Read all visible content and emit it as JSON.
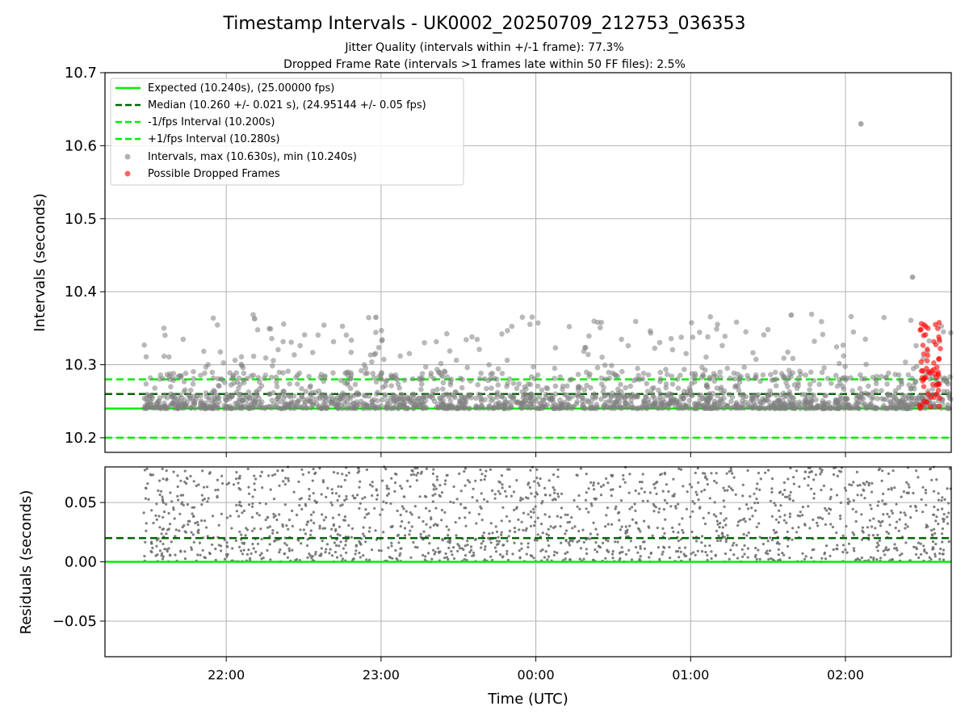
{
  "figure": {
    "title": "Timestamp Intervals - UK0002_20250709_212753_036353",
    "subtitle_line1": "Jitter Quality (intervals within +/-1 frame): 77.3%",
    "subtitle_line2": "Dropped Frame Rate (intervals >1 frames late within 50 FF files): 2.5%"
  },
  "colors": {
    "expected": "#00ee00",
    "median": "#006400",
    "fps_bounds": "#00ee00",
    "intervals": "#808080",
    "dropped": "#ff0000",
    "grid": "#b0b0b0"
  },
  "chart_data": [
    {
      "type": "scatter",
      "ylabel": "Intervals (seconds)",
      "ylim": [
        10.18,
        10.7
      ],
      "yticks": [
        10.2,
        10.3,
        10.4,
        10.5,
        10.6,
        10.7
      ],
      "ytick_labels": [
        "10.2",
        "10.3",
        "10.4",
        "10.5",
        "10.6",
        "10.7"
      ],
      "xlim": [
        "2025-07-09 21:13",
        "2025-07-10 02:41"
      ],
      "grid": true,
      "legend_position": "upper-left",
      "reference_lines": [
        {
          "name": "Expected (10.240s), (25.00000 fps)",
          "y": 10.24,
          "style": "solid",
          "color": "#00ee00"
        },
        {
          "name": "Median (10.260 +/- 0.021 s), (24.95144 +/- 0.05 fps)",
          "y": 10.26,
          "style": "dashed",
          "color": "#006400"
        },
        {
          "name": "-1/fps Interval (10.200s)",
          "y": 10.2,
          "style": "dashed",
          "color": "#00ee00"
        },
        {
          "name": "+1/fps Interval (10.280s)",
          "y": 10.28,
          "style": "dashed",
          "color": "#00ee00"
        }
      ],
      "series": [
        {
          "name": "Intervals, max (10.630s), min (10.240s)",
          "color": "#808080",
          "count": 1900,
          "x_start": "2025-07-09 21:28",
          "x_end": "2025-07-10 02:41",
          "min": 10.24,
          "max": 10.63,
          "outliers": [
            {
              "x": "2025-07-10 02:06",
              "y": 10.63
            },
            {
              "x": "2025-07-10 02:26",
              "y": 10.42
            },
            {
              "x": "2025-07-09 22:58",
              "y": 10.365
            },
            {
              "x": "2025-07-09 22:11",
              "y": 10.363
            },
            {
              "x": "2025-07-10 01:39",
              "y": 10.368
            }
          ]
        },
        {
          "name": "Possible Dropped Frames",
          "color": "#ff0000",
          "count": 60,
          "x_start": "2025-07-10 02:28",
          "x_end": "2025-07-10 02:37",
          "min": 10.24,
          "max": 10.36
        }
      ]
    },
    {
      "type": "scatter",
      "ylabel": "Residuals (seconds)",
      "xlabel": "Time (UTC)",
      "ylim": [
        -0.08,
        0.08
      ],
      "yticks": [
        -0.05,
        0.0,
        0.05
      ],
      "ytick_labels": [
        "−0.05",
        "0.00",
        "0.05"
      ],
      "xticks": [
        "2025-07-09 22:00",
        "2025-07-09 23:00",
        "2025-07-10 00:00",
        "2025-07-10 01:00",
        "2025-07-10 02:00"
      ],
      "xtick_labels": [
        "22:00",
        "23:00",
        "00:00",
        "01:00",
        "02:00"
      ],
      "grid": true,
      "reference_lines": [
        {
          "y": 0.02,
          "style": "dashed",
          "color": "#006400"
        },
        {
          "y": 0.0,
          "style": "solid",
          "color": "#00ee00"
        }
      ],
      "series": [
        {
          "name": "Residuals",
          "color": "#707070",
          "count": 1700,
          "min": 0.0,
          "max": 0.08
        }
      ]
    }
  ]
}
